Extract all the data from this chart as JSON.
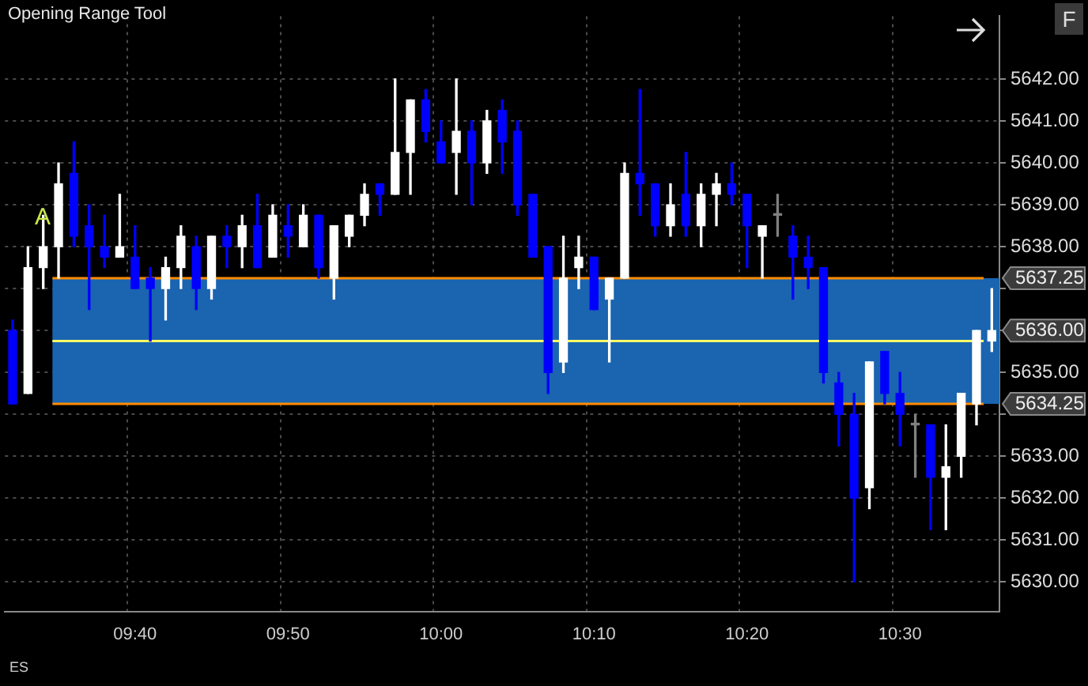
{
  "chart_data": {
    "type": "candlestick",
    "title": "Opening Range Tool",
    "categories": [
      null,
      null,
      null,
      null,
      null,
      null,
      null,
      null,
      "09:40",
      null,
      null,
      null,
      null,
      null,
      null,
      null,
      null,
      null,
      "09:50",
      null,
      null,
      null,
      null,
      null,
      null,
      null,
      null,
      null,
      "10:00",
      null,
      null,
      null,
      null,
      null,
      null,
      null,
      null,
      null,
      "10:10",
      null,
      null,
      null,
      null,
      null,
      null,
      null,
      null,
      null,
      "10:20",
      null,
      null,
      null,
      null,
      null,
      null,
      null,
      null,
      null,
      "10:30",
      null,
      null,
      null,
      null,
      null,
      null
    ],
    "ohlc": [
      [
        5636.0,
        5636.25,
        5634.25,
        5634.25
      ],
      [
        5634.5,
        5638.0,
        5634.5,
        5637.5
      ],
      [
        5637.5,
        5638.75,
        5637.0,
        5638.0
      ],
      [
        5638.0,
        5640.0,
        5637.25,
        5639.5
      ],
      [
        5639.75,
        5640.5,
        5638.0,
        5638.25
      ],
      [
        5638.5,
        5639.0,
        5636.5,
        5638.0
      ],
      [
        5638.0,
        5638.75,
        5637.5,
        5637.75
      ],
      [
        5637.75,
        5639.25,
        5637.75,
        5638.0
      ],
      [
        5637.75,
        5638.5,
        5637.0,
        5637.0
      ],
      [
        5637.25,
        5637.5,
        5635.75,
        5637.0
      ],
      [
        5637.0,
        5637.75,
        5636.25,
        5637.5
      ],
      [
        5637.5,
        5638.5,
        5637.0,
        5638.25
      ],
      [
        5638.0,
        5638.25,
        5636.5,
        5637.0
      ],
      [
        5637.0,
        5638.25,
        5636.75,
        5638.25
      ],
      [
        5638.25,
        5638.5,
        5637.5,
        5638.0
      ],
      [
        5638.0,
        5638.75,
        5637.5,
        5638.5
      ],
      [
        5638.5,
        5639.25,
        5637.5,
        5637.5
      ],
      [
        5637.75,
        5639.0,
        5637.75,
        5638.75
      ],
      [
        5638.5,
        5639.0,
        5637.75,
        5638.25
      ],
      [
        5638.0,
        5639.0,
        5638.0,
        5638.75
      ],
      [
        5638.75,
        5638.75,
        5637.25,
        5637.5
      ],
      [
        5637.25,
        5638.5,
        5636.75,
        5638.5
      ],
      [
        5638.25,
        5638.75,
        5638.0,
        5638.75
      ],
      [
        5638.75,
        5639.5,
        5638.5,
        5639.25
      ],
      [
        5639.5,
        5639.5,
        5638.75,
        5639.25
      ],
      [
        5639.25,
        5642.0,
        5639.25,
        5640.25
      ],
      [
        5640.25,
        5641.5,
        5639.25,
        5641.5
      ],
      [
        5641.5,
        5641.75,
        5640.5,
        5640.75
      ],
      [
        5640.5,
        5641.0,
        5640.0,
        5640.0
      ],
      [
        5640.25,
        5642.0,
        5639.25,
        5640.75
      ],
      [
        5640.75,
        5641.0,
        5639.0,
        5640.0
      ],
      [
        5640.0,
        5641.25,
        5639.75,
        5641.0
      ],
      [
        5641.25,
        5641.5,
        5639.75,
        5640.5
      ],
      [
        5640.75,
        5641.0,
        5638.75,
        5639.0
      ],
      [
        5639.25,
        5639.25,
        5637.75,
        5637.75
      ],
      [
        5638.0,
        5638.0,
        5634.5,
        5635.0
      ],
      [
        5635.25,
        5638.25,
        5635.0,
        5637.25
      ],
      [
        5637.5,
        5638.25,
        5637.0,
        5637.75
      ],
      [
        5637.75,
        5637.75,
        5636.5,
        5636.5
      ],
      [
        5636.75,
        5637.25,
        5635.25,
        5637.25
      ],
      [
        5637.25,
        5640.0,
        5637.25,
        5639.75
      ],
      [
        5639.75,
        5641.75,
        5638.75,
        5639.5
      ],
      [
        5639.5,
        5639.5,
        5638.25,
        5638.5
      ],
      [
        5638.5,
        5639.5,
        5638.25,
        5639.0
      ],
      [
        5639.25,
        5640.25,
        5638.25,
        5638.5
      ],
      [
        5638.5,
        5639.5,
        5638.0,
        5639.25
      ],
      [
        5639.25,
        5639.75,
        5638.5,
        5639.5
      ],
      [
        5639.5,
        5640.0,
        5639.0,
        5639.25
      ],
      [
        5639.25,
        5639.25,
        5637.5,
        5638.5
      ],
      [
        5638.25,
        5638.5,
        5637.25,
        5638.5
      ],
      [
        5638.75,
        5639.25,
        5638.25,
        5638.75
      ],
      [
        5638.25,
        5638.5,
        5636.75,
        5637.75
      ],
      [
        5637.75,
        5638.25,
        5637.0,
        5637.5
      ],
      [
        5637.5,
        5637.5,
        5634.75,
        5635.0
      ],
      [
        5634.75,
        5635.0,
        5633.25,
        5634.0
      ],
      [
        5634.0,
        5634.5,
        5630.0,
        5632.0
      ],
      [
        5632.25,
        5635.25,
        5631.75,
        5635.25
      ],
      [
        5635.5,
        5635.5,
        5634.25,
        5634.5
      ],
      [
        5634.5,
        5635.0,
        5633.25,
        5634.0
      ],
      [
        5633.75,
        5634.0,
        5632.5,
        5633.75
      ],
      [
        5633.75,
        5633.75,
        5631.25,
        5632.5
      ],
      [
        5632.5,
        5633.75,
        5631.25,
        5632.75
      ],
      [
        5633.0,
        5634.5,
        5632.5,
        5634.5
      ],
      [
        5634.25,
        5636.0,
        5633.75,
        5636.0
      ],
      [
        5635.75,
        5637.0,
        5635.5,
        5636.0
      ]
    ],
    "colors": [
      "#0000ff",
      "#ffffff",
      "#ffffff",
      "#ffffff",
      "#0000ff",
      "#0000ff",
      "#0000ff",
      "#ffffff",
      "#0000ff",
      "#0000ff",
      "#ffffff",
      "#ffffff",
      "#0000ff",
      "#ffffff",
      "#0000ff",
      "#ffffff",
      "#0000ff",
      "#ffffff",
      "#0000ff",
      "#ffffff",
      "#0000ff",
      "#ffffff",
      "#ffffff",
      "#ffffff",
      "#0000ff",
      "#ffffff",
      "#ffffff",
      "#0000ff",
      "#0000ff",
      "#ffffff",
      "#0000ff",
      "#ffffff",
      "#0000ff",
      "#0000ff",
      "#0000ff",
      "#0000ff",
      "#ffffff",
      "#ffffff",
      "#0000ff",
      "#ffffff",
      "#ffffff",
      "#0000ff",
      "#0000ff",
      "#ffffff",
      "#0000ff",
      "#ffffff",
      "#ffffff",
      "#0000ff",
      "#0000ff",
      "#ffffff",
      "#808080",
      "#0000ff",
      "#0000ff",
      "#0000ff",
      "#0000ff",
      "#0000ff",
      "#ffffff",
      "#0000ff",
      "#0000ff",
      "#808080",
      "#0000ff",
      "#ffffff",
      "#ffffff",
      "#ffffff",
      "#ffffff"
    ],
    "ylim": [
      5629.3,
      5643.5
    ],
    "yticks": [
      {
        "value": 5630,
        "label": "5630.00"
      },
      {
        "value": 5631,
        "label": "5631.00"
      },
      {
        "value": 5632,
        "label": "5632.00"
      },
      {
        "value": 5633,
        "label": "5633.00"
      },
      {
        "value": 5634,
        "label": null
      },
      {
        "value": 5635,
        "label": "5635.00"
      },
      {
        "value": 5636,
        "label": null
      },
      {
        "value": 5637,
        "label": null
      },
      {
        "value": 5638,
        "label": "5638.00"
      },
      {
        "value": 5639,
        "label": "5639.00"
      },
      {
        "value": 5640,
        "label": "5640.00"
      },
      {
        "value": 5641,
        "label": "5641.00"
      },
      {
        "value": 5642,
        "label": "5642.00"
      }
    ],
    "bands": [
      {
        "axis": "y",
        "from": 5634.25,
        "to": 5637.25,
        "color": "#1a64b0"
      }
    ],
    "ref_lines": [
      {
        "axis": "y",
        "value": 5637.25,
        "label": "5637.25",
        "color": "#ff8c00"
      },
      {
        "axis": "y",
        "value": 5634.25,
        "label": "5634.25",
        "color": "#ff8c00"
      },
      {
        "axis": "y",
        "value": 5635.75,
        "color": "#ffff66"
      }
    ],
    "annotations": [
      "5636.00",
      "A",
      "ES",
      "F"
    ],
    "grid": true,
    "legend": false
  }
}
